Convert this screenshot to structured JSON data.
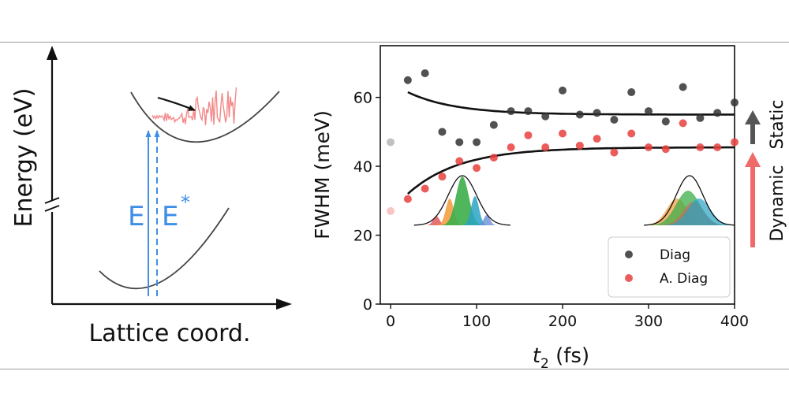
{
  "left_panel": {
    "y_axis_label": "Energy (eV)",
    "x_axis_label": "Lattice coord.",
    "transition_solid_label": "E",
    "transition_dashed_label": "E",
    "transition_dashed_superscript": "*"
  },
  "right_panel": {
    "side_label_static": "Static",
    "side_label_dynamic": "Dynamic",
    "colors": {
      "diag": "#333333",
      "adiag": "#e8413e",
      "static_arrow": "#555555",
      "dynamic_arrow": "#f06a6a",
      "blue": "#3d8ee6"
    }
  },
  "chart_data": {
    "type": "scatter",
    "title": "",
    "xlabel_main": "t",
    "xlabel_sub": "2",
    "xlabel_unit": " (fs)",
    "ylabel": "FWHM (meV)",
    "xlim": [
      -12,
      400
    ],
    "ylim": [
      0,
      75
    ],
    "xticks": [
      0,
      100,
      200,
      300,
      400
    ],
    "yticks": [
      0,
      20,
      40,
      60
    ],
    "grid": false,
    "legend_position": "bottom-right",
    "series": [
      {
        "name": "Diag",
        "color": "#333333",
        "x": [
          0,
          20,
          40,
          60,
          80,
          100,
          120,
          140,
          160,
          180,
          200,
          220,
          240,
          260,
          280,
          300,
          320,
          340,
          360,
          380,
          400
        ],
        "y": [
          47,
          65,
          67,
          50,
          47,
          47,
          52,
          56,
          56,
          54.5,
          62,
          55,
          55.5,
          53.5,
          61.5,
          56,
          53,
          63,
          54,
          55.5,
          58.5
        ],
        "faded_first": true
      },
      {
        "name": "A. Diag",
        "color": "#e8413e",
        "x": [
          0,
          20,
          40,
          60,
          80,
          100,
          120,
          140,
          160,
          180,
          200,
          220,
          240,
          260,
          280,
          300,
          320,
          340,
          360,
          380,
          400
        ],
        "y": [
          27,
          30.5,
          33.5,
          37,
          41.5,
          39.5,
          42.5,
          45.5,
          49,
          45.5,
          49.5,
          46,
          48,
          44,
          49.5,
          45.5,
          45,
          52.5,
          45.5,
          45.5,
          47
        ],
        "faded_first": true
      }
    ],
    "fits": [
      {
        "series": "Diag",
        "x_start": 20,
        "x_end": 400,
        "y_inf": 55,
        "amplitude": 6.5,
        "tau": 55
      },
      {
        "series": "A. Diag",
        "x_start": 20,
        "x_end": 400,
        "y_inf": 45.5,
        "amplitude": -13.5,
        "tau": 60
      }
    ]
  }
}
